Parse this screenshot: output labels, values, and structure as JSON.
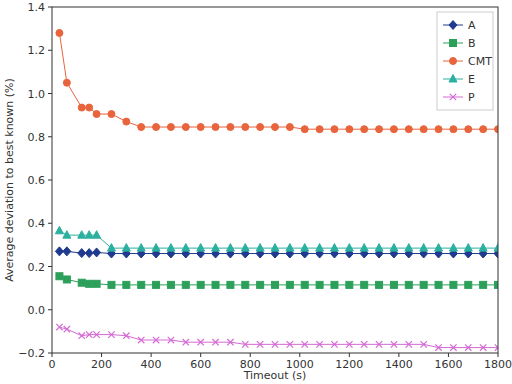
{
  "chart_data": {
    "type": "line",
    "x_label": "Timeout (s)",
    "y_label": "Average deviation to best known (%)",
    "x": [
      30,
      60,
      120,
      150,
      180,
      240,
      300,
      360,
      420,
      480,
      540,
      600,
      660,
      720,
      780,
      840,
      900,
      960,
      1020,
      1080,
      1140,
      1200,
      1260,
      1320,
      1380,
      1440,
      1500,
      1560,
      1620,
      1680,
      1740,
      1800
    ],
    "series": [
      {
        "name": "A",
        "color": "#1f3b8f",
        "marker": "diamond",
        "values": [
          0.27,
          0.27,
          0.262,
          0.262,
          0.265,
          0.26,
          0.26,
          0.26,
          0.26,
          0.26,
          0.26,
          0.26,
          0.26,
          0.26,
          0.26,
          0.26,
          0.26,
          0.26,
          0.26,
          0.26,
          0.26,
          0.26,
          0.26,
          0.26,
          0.26,
          0.26,
          0.26,
          0.26,
          0.26,
          0.26,
          0.26,
          0.26
        ]
      },
      {
        "name": "B",
        "color": "#2ca05a",
        "marker": "square",
        "values": [
          0.155,
          0.14,
          0.125,
          0.12,
          0.12,
          0.115,
          0.115,
          0.115,
          0.115,
          0.115,
          0.115,
          0.115,
          0.115,
          0.115,
          0.115,
          0.115,
          0.115,
          0.115,
          0.115,
          0.115,
          0.115,
          0.115,
          0.115,
          0.115,
          0.115,
          0.115,
          0.115,
          0.115,
          0.115,
          0.115,
          0.115,
          0.115
        ]
      },
      {
        "name": "CMT",
        "color": "#e8643c",
        "marker": "circle",
        "values": [
          1.28,
          1.05,
          0.935,
          0.935,
          0.905,
          0.905,
          0.87,
          0.845,
          0.845,
          0.845,
          0.845,
          0.845,
          0.845,
          0.845,
          0.845,
          0.845,
          0.845,
          0.845,
          0.835,
          0.835,
          0.835,
          0.835,
          0.835,
          0.835,
          0.835,
          0.835,
          0.835,
          0.835,
          0.835,
          0.835,
          0.835,
          0.835
        ]
      },
      {
        "name": "E",
        "color": "#2bb0a0",
        "marker": "triangle",
        "values": [
          0.365,
          0.345,
          0.345,
          0.345,
          0.345,
          0.285,
          0.285,
          0.285,
          0.285,
          0.285,
          0.285,
          0.285,
          0.285,
          0.285,
          0.285,
          0.285,
          0.285,
          0.285,
          0.285,
          0.285,
          0.285,
          0.285,
          0.285,
          0.285,
          0.285,
          0.285,
          0.285,
          0.285,
          0.285,
          0.285,
          0.285,
          0.285
        ]
      },
      {
        "name": "P",
        "color": "#d46ad4",
        "marker": "x",
        "values": [
          -0.08,
          -0.09,
          -0.12,
          -0.115,
          -0.115,
          -0.115,
          -0.12,
          -0.14,
          -0.14,
          -0.14,
          -0.15,
          -0.15,
          -0.15,
          -0.15,
          -0.16,
          -0.16,
          -0.16,
          -0.16,
          -0.16,
          -0.16,
          -0.16,
          -0.16,
          -0.16,
          -0.16,
          -0.16,
          -0.16,
          -0.16,
          -0.175,
          -0.175,
          -0.175,
          -0.175,
          -0.175
        ]
      }
    ],
    "xlim": [
      0,
      1800
    ],
    "xticks": [
      0,
      200,
      400,
      600,
      800,
      1000,
      1200,
      1400,
      1600,
      1800
    ],
    "ylim": [
      -0.2,
      1.4
    ],
    "yticks": [
      {
        "value": -0.2,
        "label": "−0.2"
      },
      {
        "value": 0,
        "label": "0.0"
      },
      {
        "value": 0.2,
        "label": "0.2"
      },
      {
        "value": 0.4,
        "label": "0.4"
      },
      {
        "value": 0.6,
        "label": "0.6"
      },
      {
        "value": 0.8,
        "label": "0.8"
      },
      {
        "value": 1.0,
        "label": "1.0"
      },
      {
        "value": 1.2,
        "label": "1.2"
      },
      {
        "value": 1.4,
        "label": "1.4"
      }
    ],
    "grid": false,
    "legend": "upper right"
  }
}
